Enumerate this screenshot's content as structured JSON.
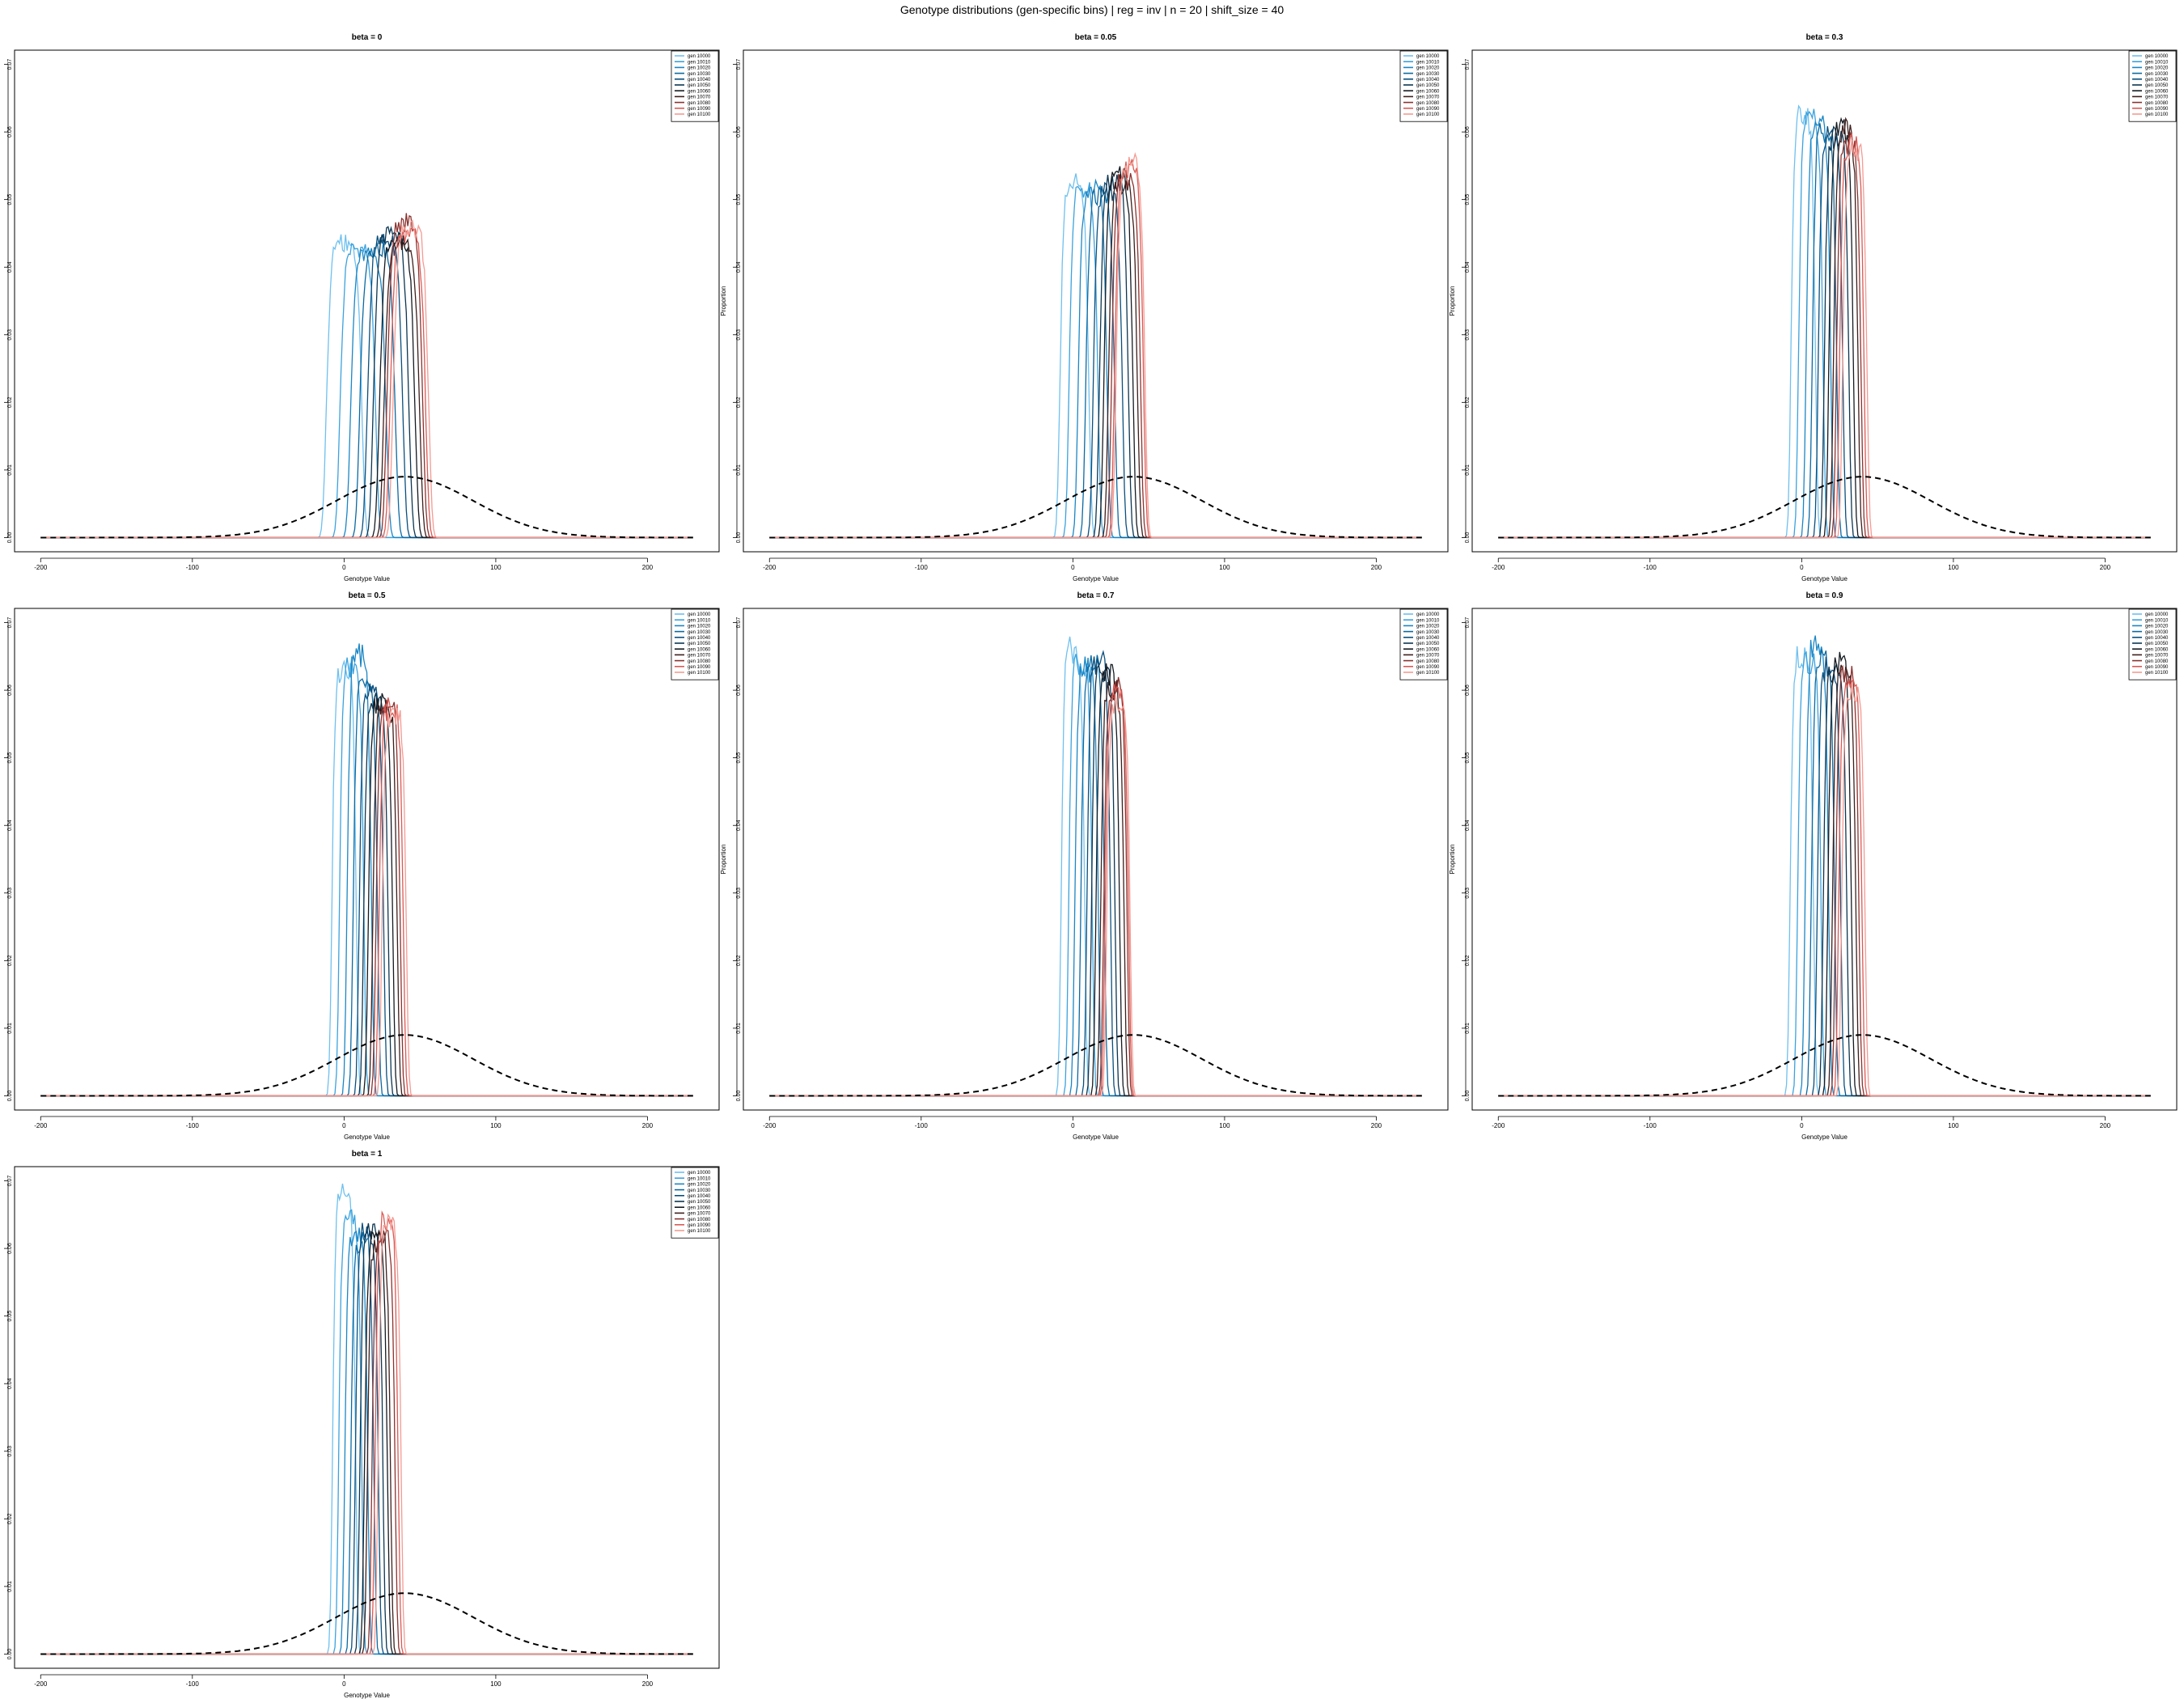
{
  "suptitle": "Genotype distributions (gen-specific bins) | reg = inv | n = 20 | shift_size = 40",
  "chart_data": [
    {
      "type": "line",
      "title": "beta = 0",
      "beta": 0,
      "xlabel": "Genotype Value",
      "ylabel": "Proportion",
      "xlim": [
        -200,
        230
      ],
      "ylim": [
        0,
        0.07
      ],
      "xticks": [
        -200,
        -100,
        0,
        100,
        200
      ],
      "yticks": [
        0,
        0.01,
        0.02,
        0.03,
        0.04,
        0.05,
        0.06,
        0.07
      ],
      "ytick_labels": [
        "0.00",
        "0.01",
        "0.02",
        "0.03",
        "0.04",
        "0.05",
        "0.06",
        "0.07"
      ],
      "legend": "top-right",
      "grid": false,
      "series_centers": [
        0,
        9,
        16,
        22,
        27,
        31,
        35,
        38,
        40,
        42,
        44
      ],
      "series_peaks": [
        0.045,
        0.044,
        0.043,
        0.044,
        0.045,
        0.046,
        0.045,
        0.045,
        0.048,
        0.046,
        0.047
      ],
      "series_sd": 8,
      "reference_curve": {
        "style": "dashed",
        "center": 40,
        "peak": 0.009,
        "sd": 45
      }
    },
    {
      "type": "line",
      "title": "beta = 0.05",
      "beta": 0.05,
      "xlabel": "Genotype Value",
      "ylabel": "Proportion",
      "xlim": [
        -200,
        230
      ],
      "ylim": [
        0,
        0.07
      ],
      "xticks": [
        -200,
        -100,
        0,
        100,
        200
      ],
      "yticks": [
        0,
        0.01,
        0.02,
        0.03,
        0.04,
        0.05,
        0.06,
        0.07
      ],
      "ytick_labels": [
        "0.00",
        "0.01",
        "0.02",
        "0.03",
        "0.04",
        "0.05",
        "0.06",
        "0.07"
      ],
      "legend": "top-right",
      "grid": false,
      "series_centers": [
        1,
        7,
        13,
        18,
        23,
        27,
        30,
        33,
        35,
        37,
        38
      ],
      "series_peaks": [
        0.054,
        0.053,
        0.053,
        0.052,
        0.053,
        0.054,
        0.055,
        0.054,
        0.055,
        0.056,
        0.057
      ],
      "series_sd": 6.5,
      "reference_curve": {
        "style": "dashed",
        "center": 40,
        "peak": 0.009,
        "sd": 45
      }
    },
    {
      "type": "line",
      "title": "beta = 0.3",
      "beta": 0.3,
      "xlabel": "Genotype Value",
      "ylabel": "Proportion",
      "xlim": [
        -200,
        230
      ],
      "ylim": [
        0,
        0.07
      ],
      "xticks": [
        -200,
        -100,
        0,
        100,
        200
      ],
      "yticks": [
        0,
        0.01,
        0.02,
        0.03,
        0.04,
        0.05,
        0.06,
        0.07
      ],
      "ytick_labels": [
        "0.00",
        "0.01",
        "0.02",
        "0.03",
        "0.04",
        "0.05",
        "0.06",
        "0.07"
      ],
      "legend": "top-right",
      "grid": false,
      "series_centers": [
        1,
        6,
        11,
        15,
        19,
        23,
        26,
        29,
        31,
        33,
        35
      ],
      "series_peaks": [
        0.064,
        0.064,
        0.063,
        0.062,
        0.061,
        0.061,
        0.062,
        0.062,
        0.06,
        0.06,
        0.059
      ],
      "series_sd": 5.5,
      "reference_curve": {
        "style": "dashed",
        "center": 40,
        "peak": 0.009,
        "sd": 45
      }
    },
    {
      "type": "line",
      "title": "beta = 0.5",
      "beta": 0.5,
      "xlabel": "Genotype Value",
      "ylabel": "Proportion",
      "xlim": [
        -200,
        230
      ],
      "ylim": [
        0,
        0.07
      ],
      "xticks": [
        -200,
        -100,
        0,
        100,
        200
      ],
      "yticks": [
        0,
        0.01,
        0.02,
        0.03,
        0.04,
        0.05,
        0.06,
        0.07
      ],
      "ytick_labels": [
        "0.00",
        "0.01",
        "0.02",
        "0.03",
        "0.04",
        "0.05",
        "0.06",
        "0.07"
      ],
      "legend": "top-right",
      "grid": false,
      "series_centers": [
        0,
        5,
        10,
        14,
        18,
        21,
        24,
        27,
        29,
        31,
        33
      ],
      "series_peaks": [
        0.065,
        0.065,
        0.067,
        0.063,
        0.061,
        0.06,
        0.06,
        0.059,
        0.059,
        0.059,
        0.058
      ],
      "series_sd": 5.5,
      "reference_curve": {
        "style": "dashed",
        "center": 40,
        "peak": 0.009,
        "sd": 45
      }
    },
    {
      "type": "line",
      "title": "beta = 0.7",
      "beta": 0.7,
      "xlabel": "Genotype Value",
      "ylabel": "Proportion",
      "xlim": [
        -200,
        230
      ],
      "ylim": [
        0,
        0.07
      ],
      "xticks": [
        -200,
        -100,
        0,
        100,
        200
      ],
      "yticks": [
        0,
        0.01,
        0.02,
        0.03,
        0.04,
        0.05,
        0.06,
        0.07
      ],
      "ytick_labels": [
        "0.00",
        "0.01",
        "0.02",
        "0.03",
        "0.04",
        "0.05",
        "0.06",
        "0.07"
      ],
      "legend": "top-right",
      "grid": false,
      "series_centers": [
        0,
        5,
        9,
        13,
        17,
        20,
        23,
        26,
        28,
        29,
        30
      ],
      "series_peaks": [
        0.068,
        0.066,
        0.065,
        0.066,
        0.066,
        0.065,
        0.064,
        0.062,
        0.062,
        0.061,
        0.06
      ],
      "series_sd": 5.3,
      "reference_curve": {
        "style": "dashed",
        "center": 40,
        "peak": 0.009,
        "sd": 45
      }
    },
    {
      "type": "line",
      "title": "beta = 0.9",
      "beta": 0.9,
      "xlabel": "Genotype Value",
      "ylabel": "Proportion",
      "xlim": [
        -200,
        230
      ],
      "ylim": [
        0,
        0.07
      ],
      "xticks": [
        -200,
        -100,
        0,
        100,
        200
      ],
      "yticks": [
        0,
        0.01,
        0.02,
        0.03,
        0.04,
        0.05,
        0.06,
        0.07
      ],
      "ytick_labels": [
        "0.00",
        "0.01",
        "0.02",
        "0.03",
        "0.04",
        "0.05",
        "0.06",
        "0.07"
      ],
      "legend": "top-right",
      "grid": false,
      "series_centers": [
        0,
        5,
        10,
        14,
        18,
        22,
        25,
        28,
        30,
        32,
        34
      ],
      "series_peaks": [
        0.067,
        0.066,
        0.069,
        0.066,
        0.065,
        0.065,
        0.066,
        0.065,
        0.064,
        0.062,
        0.062
      ],
      "series_sd": 5.3,
      "reference_curve": {
        "style": "dashed",
        "center": 40,
        "peak": 0.009,
        "sd": 45
      }
    },
    {
      "type": "line",
      "title": "beta = 1",
      "beta": 1,
      "xlabel": "Genotype Value",
      "ylabel": "Proportion",
      "xlim": [
        -200,
        230
      ],
      "ylim": [
        0,
        0.07
      ],
      "xticks": [
        -200,
        -100,
        0,
        100,
        200
      ],
      "yticks": [
        0,
        0.01,
        0.02,
        0.03,
        0.04,
        0.05,
        0.06,
        0.07
      ],
      "ytick_labels": [
        "0.00",
        "0.01",
        "0.02",
        "0.03",
        "0.04",
        "0.05",
        "0.06",
        "0.07"
      ],
      "legend": "top-right",
      "grid": false,
      "series_centers": [
        0,
        4,
        8,
        12,
        15,
        18,
        21,
        23,
        26,
        28,
        30
      ],
      "series_peaks": [
        0.07,
        0.066,
        0.064,
        0.063,
        0.064,
        0.064,
        0.063,
        0.063,
        0.064,
        0.066,
        0.065
      ],
      "series_sd": 5.2,
      "reference_curve": {
        "style": "dashed",
        "center": 40,
        "peak": 0.009,
        "sd": 45
      }
    }
  ],
  "series_legend": [
    {
      "name": "gen 10000",
      "color": "#6fc0ee"
    },
    {
      "name": "gen 10010",
      "color": "#3ba2dd"
    },
    {
      "name": "gen 10020",
      "color": "#1b86c4"
    },
    {
      "name": "gen 10030",
      "color": "#0b6aa2"
    },
    {
      "name": "gen 10040",
      "color": "#0a4f7d"
    },
    {
      "name": "gen 10050",
      "color": "#0c3652"
    },
    {
      "name": "gen 10060",
      "color": "#151a20"
    },
    {
      "name": "gen 10070",
      "color": "#3f1f1d"
    },
    {
      "name": "gen 10080",
      "color": "#8a3330"
    },
    {
      "name": "gen 10090",
      "color": "#d95a55"
    },
    {
      "name": "gen 10100",
      "color": "#f39b93"
    }
  ]
}
